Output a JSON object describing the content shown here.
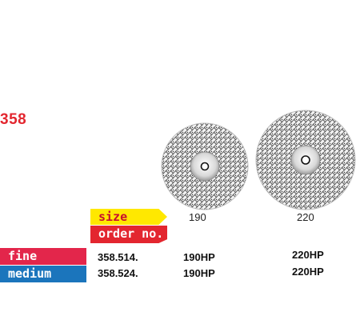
{
  "series_number": "358",
  "labels": {
    "size": "size",
    "order_no": "order no."
  },
  "sizes": [
    "190",
    "220"
  ],
  "rows": [
    {
      "grit": "fine",
      "color": "#e3264b",
      "order": "358.514.",
      "items": [
        "190HP",
        "220HP"
      ]
    },
    {
      "grit": "medium",
      "color": "#1b75bc",
      "order": "358.524.",
      "items": [
        "190HP",
        "220HP"
      ]
    }
  ],
  "colors": {
    "accent": "#e3262f",
    "size_tag": "#ffe800"
  }
}
